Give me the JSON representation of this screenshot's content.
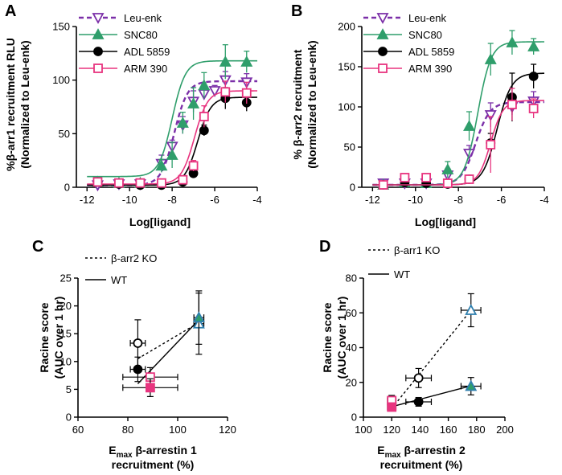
{
  "colors": {
    "leu_enk": "#7b2fa8",
    "snc80": "#2f9e6b",
    "adl5859": "#000000",
    "arm390": "#e8347f",
    "triangle_blue": "#2f7fae"
  },
  "chart_data": [
    {
      "panel": "A",
      "type": "line",
      "title": "",
      "xlabel": "Log[ligand]",
      "ylabel": "%β-arr1 recruitment RLU",
      "ylabel2": "(Normalized to Leu-enk)",
      "xlim": [
        -12.5,
        -4
      ],
      "ylim": [
        0,
        150
      ],
      "xticks": [
        "-12",
        "-10",
        "-8",
        "-6",
        "-4"
      ],
      "xtick_values": [
        -12,
        -10,
        -8,
        -6,
        -4
      ],
      "yticks": [
        "0",
        "50",
        "100",
        "150"
      ],
      "ytick_values": [
        0,
        50,
        100,
        150
      ],
      "legend_position": "top-left",
      "series": [
        {
          "name": "Leu-enk",
          "marker": "triangle-down-open",
          "dashed": true,
          "x": [
            -11.5,
            -10.5,
            -9.5,
            -8.5,
            -8,
            -7.5,
            -7,
            -6.5,
            -6,
            -5.5,
            -4.5
          ],
          "y": [
            2,
            3,
            3,
            22,
            38,
            58,
            80,
            87,
            90,
            100,
            98
          ],
          "err": [
            2,
            2,
            2,
            8,
            6,
            8,
            10,
            5,
            5,
            8,
            8
          ],
          "fit": {
            "bottom": 2,
            "top": 99,
            "ec50": -7.9,
            "hill": 1.4
          }
        },
        {
          "name": "SNC80",
          "marker": "triangle-up",
          "dashed": false,
          "x": [
            -11.5,
            -10.5,
            -9.5,
            -8.5,
            -8,
            -7.5,
            -7,
            -6.5,
            -5.5,
            -4.5
          ],
          "y": [
            5,
            4,
            4,
            20,
            30,
            60,
            78,
            95,
            117,
            117
          ],
          "err": [
            3,
            2,
            2,
            6,
            12,
            10,
            15,
            12,
            16,
            10
          ],
          "fit": {
            "bottom": 10,
            "top": 118,
            "ec50": -8.0,
            "hill": 1.4
          }
        },
        {
          "name": "ADL 5859",
          "marker": "circle",
          "dashed": false,
          "x": [
            -11.5,
            -10.5,
            -9.5,
            -8.5,
            -7.5,
            -7,
            -6.5,
            -5.5,
            -4.5
          ],
          "y": [
            5,
            3,
            2,
            2,
            5,
            13,
            53,
            83,
            79
          ],
          "err": [
            2,
            2,
            2,
            2,
            2,
            3,
            5,
            10,
            8
          ],
          "fit": {
            "bottom": 2,
            "top": 84,
            "ec50": -6.8,
            "hill": 1.4
          }
        },
        {
          "name": "ARM 390",
          "marker": "square-open",
          "dashed": false,
          "x": [
            -11.5,
            -10.5,
            -9.5,
            -8.5,
            -7.5,
            -7,
            -6.5,
            -5.5,
            -4.5
          ],
          "y": [
            5,
            4,
            4,
            4,
            7,
            20,
            66,
            89,
            88
          ],
          "err": [
            2,
            2,
            2,
            2,
            3,
            5,
            10,
            10,
            10
          ],
          "fit": {
            "bottom": 3,
            "top": 90,
            "ec50": -6.95,
            "hill": 1.4
          }
        }
      ]
    },
    {
      "panel": "B",
      "type": "line",
      "title": "",
      "xlabel": "Log[ligand]",
      "ylabel": "% β-arr2 recruitment",
      "ylabel2": "(Normalized to Leu-enk)",
      "xlim": [
        -12.5,
        -4
      ],
      "ylim": [
        0,
        200
      ],
      "xticks": [
        "-12",
        "-10",
        "-8",
        "-6",
        "-4"
      ],
      "xtick_values": [
        -12,
        -10,
        -8,
        -6,
        -4
      ],
      "yticks": [
        "0",
        "50",
        "100",
        "150",
        "200"
      ],
      "ytick_values": [
        0,
        50,
        100,
        150,
        200
      ],
      "legend_position": "top-left",
      "series": [
        {
          "name": "Leu-enk",
          "marker": "triangle-down-open",
          "dashed": true,
          "x": [
            -11.5,
            -10.5,
            -9.5,
            -8.5,
            -7.5,
            -6.5,
            -5.5,
            -4.5
          ],
          "y": [
            5,
            5,
            5,
            15,
            42,
            90,
            100,
            107
          ],
          "err": [
            3,
            3,
            3,
            8,
            10,
            15,
            10,
            12
          ],
          "fit": {
            "bottom": 3,
            "top": 106,
            "ec50": -7.2,
            "hill": 1.3
          }
        },
        {
          "name": "SNC80",
          "marker": "triangle-up",
          "dashed": false,
          "x": [
            -11.5,
            -10.5,
            -9.5,
            -8.5,
            -7.5,
            -6.5,
            -5.5,
            -4.5
          ],
          "y": [
            3,
            6,
            5,
            22,
            76,
            159,
            180,
            175
          ],
          "err": [
            3,
            4,
            3,
            10,
            18,
            20,
            15,
            10
          ],
          "fit": {
            "bottom": 3,
            "top": 181,
            "ec50": -7.1,
            "hill": 1.4
          }
        },
        {
          "name": "ADL 5859",
          "marker": "circle",
          "dashed": false,
          "x": [
            -11.5,
            -10.5,
            -9.5,
            -8.5,
            -7.5,
            -6.5,
            -5.5,
            -4.5
          ],
          "y": [
            3,
            6,
            5,
            4,
            10,
            55,
            112,
            138
          ],
          "err": [
            2,
            3,
            3,
            3,
            5,
            12,
            30,
            15
          ],
          "fit": {
            "bottom": 3,
            "top": 142,
            "ec50": -6.2,
            "hill": 1.3
          }
        },
        {
          "name": "ARM 390",
          "marker": "square-open",
          "dashed": false,
          "x": [
            -11.5,
            -10.5,
            -9.5,
            -8.5,
            -7.5,
            -6.5,
            -5.5,
            -4.5
          ],
          "y": [
            3,
            12,
            12,
            5,
            10,
            53,
            103,
            98
          ],
          "err": [
            3,
            5,
            5,
            3,
            5,
            35,
            20,
            12
          ],
          "fit": {
            "bottom": 3,
            "top": 108,
            "ec50": -6.5,
            "hill": 1.5
          }
        }
      ]
    },
    {
      "panel": "C",
      "type": "scatter",
      "title": "",
      "xlabel": "E",
      "xlabel_sub": "max",
      "xlabel_rest": " β-arrestin 1",
      "xlabel2": "recruitment (%)",
      "ylabel": "Racine score",
      "ylabel2": "(AUC over 1 hr)",
      "xlim": [
        60,
        120
      ],
      "ylim": [
        0,
        25
      ],
      "xticks": [
        "60",
        "80",
        "100",
        "120"
      ],
      "xtick_values": [
        60,
        80,
        100,
        120
      ],
      "yticks": [
        "0",
        "5",
        "10",
        "15",
        "20",
        "25"
      ],
      "ytick_values": [
        0,
        5,
        10,
        15,
        20,
        25
      ],
      "legend_position": "top-left",
      "legend": [
        {
          "label": "β-arr2 KO",
          "style": "dashed"
        },
        {
          "label": "WT",
          "style": "solid"
        }
      ],
      "fit_lines": [
        {
          "style": "dashed",
          "x": [
            84,
            108.5
          ],
          "y": [
            10.5,
            17
          ]
        },
        {
          "style": "solid",
          "x": [
            84,
            108.5
          ],
          "y": [
            6,
            17.5
          ]
        }
      ],
      "points": [
        {
          "group": "β-arr2 KO",
          "ligand": "ADL 5859",
          "marker": "circle-open",
          "x": 84,
          "y": 13.3,
          "xerr": 3,
          "yerr": 4.2
        },
        {
          "group": "β-arr2 KO",
          "ligand": "SNC80",
          "marker": "triangle-open",
          "x": 108.5,
          "y": 16.8,
          "xerr": 2,
          "yerr": 5.5
        },
        {
          "group": "β-arr2 KO",
          "ligand": "ARM 390",
          "marker": "square-open",
          "x": 89,
          "y": 7.2,
          "xerr": 11,
          "yerr": 1.7
        },
        {
          "group": "WT",
          "ligand": "ADL 5859",
          "marker": "circle",
          "x": 84,
          "y": 8.6,
          "xerr": 3,
          "yerr": 2.2
        },
        {
          "group": "WT",
          "ligand": "SNC80",
          "marker": "triangle",
          "x": 108.5,
          "y": 17.9,
          "xerr": 2,
          "yerr": 4.8
        },
        {
          "group": "WT",
          "ligand": "ARM 390",
          "marker": "square",
          "x": 89,
          "y": 5.3,
          "xerr": 11,
          "yerr": 1.6
        }
      ]
    },
    {
      "panel": "D",
      "type": "scatter",
      "title": "",
      "xlabel": "E",
      "xlabel_sub": "max",
      "xlabel_rest": " β-arrestin 2",
      "xlabel2": "recruitment (%)",
      "ylabel": "Racine score",
      "ylabel2": "(AUC over 1 hr)",
      "xlim": [
        100,
        200
      ],
      "ylim": [
        0,
        80
      ],
      "xticks": [
        "100",
        "120",
        "140",
        "160",
        "180",
        "200"
      ],
      "xtick_values": [
        100,
        120,
        140,
        160,
        180,
        200
      ],
      "yticks": [
        "0",
        "20",
        "40",
        "60",
        "80"
      ],
      "ytick_values": [
        0,
        20,
        40,
        60,
        80
      ],
      "legend_position": "top-left",
      "legend": [
        {
          "label": "β-arr1 KO",
          "style": "dashed"
        },
        {
          "label": "WT",
          "style": "solid"
        }
      ],
      "fit_lines": [
        {
          "style": "dashed",
          "x": [
            120,
            176
          ],
          "y": [
            5,
            61.5
          ]
        },
        {
          "style": "solid",
          "x": [
            120,
            176
          ],
          "y": [
            6,
            18
          ]
        }
      ],
      "points": [
        {
          "group": "β-arr1 KO",
          "ligand": "ADL 5859",
          "marker": "circle-open",
          "x": 139,
          "y": 22.5,
          "xerr": 9,
          "yerr": 5.5
        },
        {
          "group": "β-arr1 KO",
          "ligand": "SNC80",
          "marker": "triangle-open",
          "x": 176,
          "y": 61.5,
          "xerr": 7,
          "yerr": 9.5
        },
        {
          "group": "β-arr1 KO",
          "ligand": "ARM 390",
          "marker": "square-open",
          "x": 120,
          "y": 9.5,
          "xerr": 3,
          "yerr": 3
        },
        {
          "group": "WT",
          "ligand": "ADL 5859",
          "marker": "circle",
          "x": 139,
          "y": 8.8,
          "xerr": 9,
          "yerr": 2.5
        },
        {
          "group": "WT",
          "ligand": "SNC80",
          "marker": "triangle",
          "x": 176,
          "y": 17.8,
          "xerr": 7,
          "yerr": 5
        },
        {
          "group": "WT",
          "ligand": "ARM 390",
          "marker": "square",
          "x": 120,
          "y": 5.8,
          "xerr": 3,
          "yerr": 2
        }
      ]
    }
  ]
}
